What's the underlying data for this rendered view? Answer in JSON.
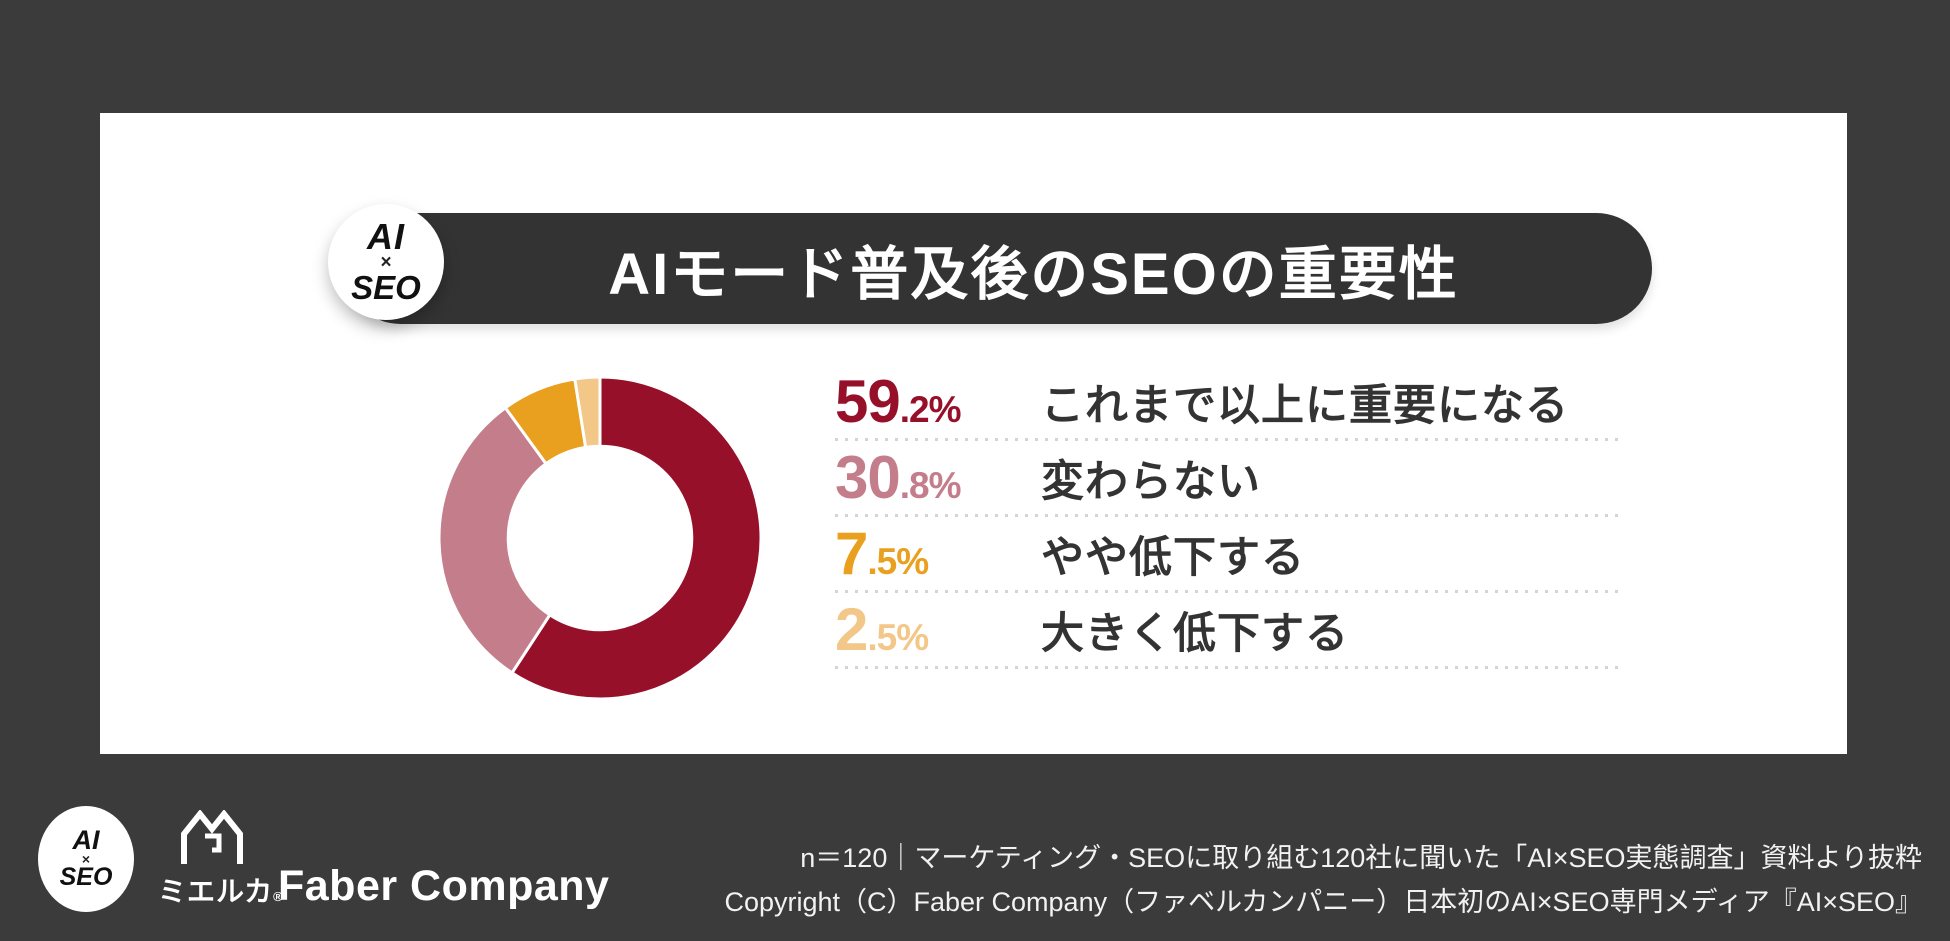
{
  "page": {
    "background_color": "#3b3b3b",
    "card_color": "#ffffff"
  },
  "header": {
    "badge": {
      "top": "AI",
      "middle": "×",
      "bottom": "SEO"
    },
    "title": "AIモード普及後のSEOの重要性",
    "pill_color": "#333333"
  },
  "chart_data": {
    "type": "pie",
    "subtype": "donut",
    "title": "AIモード普及後のSEOの重要性",
    "categories": [
      "これまで以上に重要になる",
      "変わらない",
      "やや低下する",
      "大きく低下する"
    ],
    "values": [
      59.2,
      30.8,
      7.5,
      2.5
    ],
    "colors": [
      "#96102a",
      "#c47e8b",
      "#eaa01f",
      "#f2c787"
    ],
    "value_suffix": "%",
    "start_angle_deg": 0,
    "direction": "clockwise",
    "inner_radius_ratio": 0.57,
    "segment_gap_color": "#ffffff",
    "legend_position": "right"
  },
  "footer": {
    "badge": {
      "top": "AI",
      "middle": "×",
      "bottom": "SEO"
    },
    "mieruka_text": "ミエルカ",
    "registered_mark": "®",
    "faber_text": "Faber Company",
    "note_line1": "n＝120｜マーケティング・SEOに取り組む120社に聞いた「AI×SEO実態調査」資料より抜粋",
    "note_line2": "Copyright（C）Faber Company（ファベルカンパニー）日本初のAI×SEO専門メディア『AI×SEO』"
  }
}
